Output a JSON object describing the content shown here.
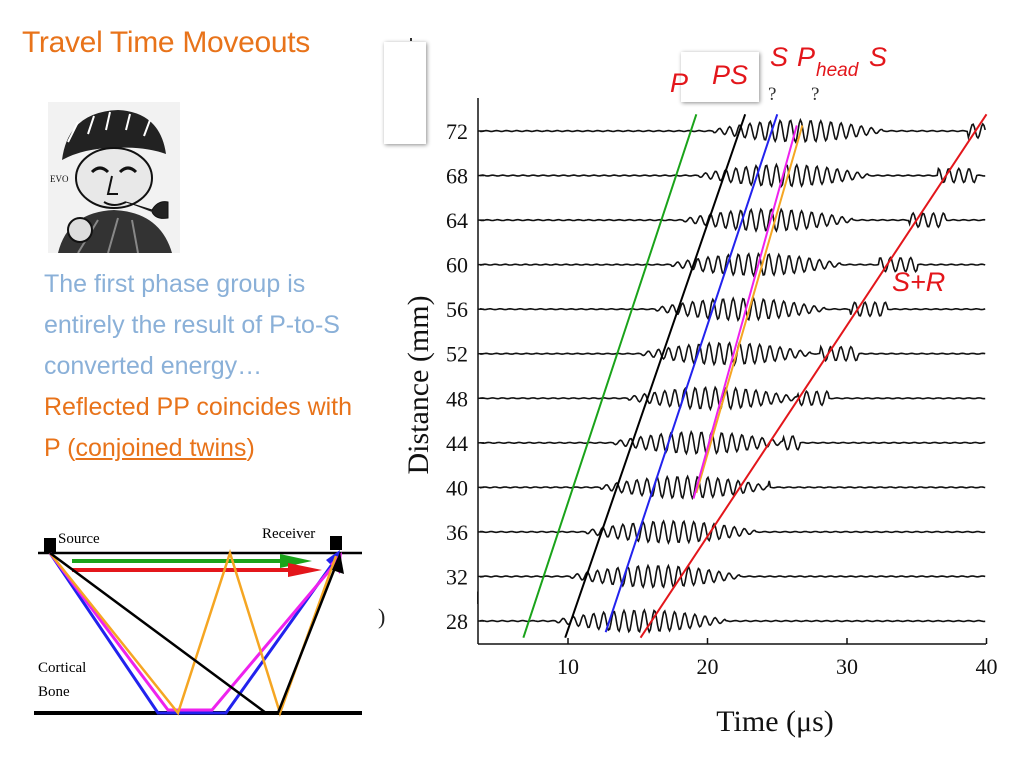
{
  "slide": {
    "title": "Travel Time Moveouts",
    "description": {
      "line_blue": "The first phase group is entirely the result of P-to-S converted energy…",
      "line_orange_a": "Reflected PP coincides with P (",
      "line_orange_link": "conjoined twins",
      "line_orange_b": ")"
    }
  },
  "diagram": {
    "source_label": "Source",
    "receiver_label": "Receiver",
    "bone_label_1": "Cortical",
    "bone_label_2": "Bone",
    "colors": {
      "green": "#1aa31a",
      "red": "#e3161b",
      "blue": "#2222ee",
      "magenta": "#ee22ee",
      "orange": "#f5a623",
      "black": "#000000"
    }
  },
  "phase_labels": {
    "p": "P",
    "ps": "PS",
    "s": "S",
    "phead_p": "P",
    "phead_sub": "head",
    "phead_s": "S",
    "sr": "S+R",
    "q1": "?",
    "q2": "?"
  },
  "chart_data": {
    "type": "line",
    "xlabel": "Time (μs)",
    "ylabel": "Distance (mm)",
    "xlim": [
      4,
      41
    ],
    "ylim": [
      26.5,
      75
    ],
    "x_ticks": [
      10,
      20,
      30,
      40
    ],
    "y_ticks": [
      28,
      32,
      36,
      40,
      44,
      48,
      52,
      56,
      60,
      64,
      68,
      72
    ],
    "traces": [
      {
        "distance": 28,
        "onset": 10.2
      },
      {
        "distance": 32,
        "onset": 11.2
      },
      {
        "distance": 36,
        "onset": 12.3
      },
      {
        "distance": 40,
        "onset": 13.3
      },
      {
        "distance": 44,
        "onset": 14.3
      },
      {
        "distance": 48,
        "onset": 15.3
      },
      {
        "distance": 52,
        "onset": 16.3
      },
      {
        "distance": 56,
        "onset": 17.3
      },
      {
        "distance": 60,
        "onset": 18.4
      },
      {
        "distance": 64,
        "onset": 19.3
      },
      {
        "distance": 68,
        "onset": 20.4
      },
      {
        "distance": 72,
        "onset": 21.4
      }
    ],
    "moveout_lines": [
      {
        "name": "P",
        "color": "#1aa31a",
        "points": [
          [
            6.8,
            26.5
          ],
          [
            19.2,
            73.5
          ]
        ]
      },
      {
        "name": "PS",
        "color": "#000000",
        "points": [
          [
            9.8,
            26.5
          ],
          [
            22.7,
            73.5
          ]
        ]
      },
      {
        "name": "S",
        "color": "#2222ee",
        "points": [
          [
            12.7,
            27.0
          ],
          [
            25.0,
            73.5
          ]
        ]
      },
      {
        "name": "PheadS (orange)",
        "color": "#f5a623",
        "points": [
          [
            19.2,
            39.5
          ],
          [
            26.8,
            72.5
          ]
        ]
      },
      {
        "name": "PheadS (magenta)",
        "color": "#ee22ee",
        "points": [
          [
            19.0,
            39.0
          ],
          [
            26.4,
            72.5
          ]
        ]
      },
      {
        "name": "S+R",
        "color": "#e3161b",
        "points": [
          [
            15.2,
            26.5
          ],
          [
            40.0,
            73.5
          ]
        ]
      }
    ]
  }
}
